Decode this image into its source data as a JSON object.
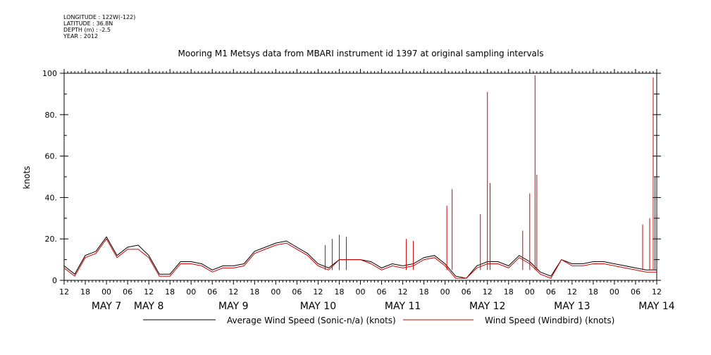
{
  "header": {
    "longitude": "LONGITUDE : 122W(-122)",
    "latitude": "LATITUDE : 36.8N",
    "depth": "DEPTH (m) : -2.5",
    "year": "YEAR : 2012"
  },
  "colors": {
    "average": "#000000",
    "windbird": "#d40000"
  },
  "chart_data": {
    "type": "line",
    "title": "Mooring M1 Metsys data from MBARI instrument id 1397 at original sampling intervals",
    "ylabel": "knots",
    "xlabel": "",
    "ylim": [
      0,
      100
    ],
    "xlim": [
      "2012-05-07 12:00",
      "2012-05-14 12:00"
    ],
    "y_ticks": [
      "0",
      "20.",
      "40.",
      "60.",
      "80.",
      "100"
    ],
    "x_hour_ticks": [
      "12",
      "18",
      "00",
      "06",
      "12",
      "18",
      "00",
      "06",
      "12",
      "18",
      "00",
      "06",
      "12",
      "18",
      "00",
      "06",
      "12",
      "18",
      "00",
      "06",
      "12",
      "18",
      "00",
      "06",
      "12",
      "18",
      "00",
      "06",
      "12"
    ],
    "date_labels": [
      {
        "label": "MAY  7",
        "at": "2012-05-08 00:00"
      },
      {
        "label": "MAY  8",
        "at": "2012-05-08 12:00"
      },
      {
        "label": "MAY  9",
        "at": "2012-05-09 12:00"
      },
      {
        "label": "MAY 10",
        "at": "2012-05-10 12:00"
      },
      {
        "label": "MAY 11",
        "at": "2012-05-11 12:00"
      },
      {
        "label": "MAY 12",
        "at": "2012-05-12 12:00"
      },
      {
        "label": "MAY 13",
        "at": "2012-05-13 12:00"
      },
      {
        "label": "MAY 14",
        "at": "2012-05-14 12:00"
      }
    ],
    "legend_position": "bottom",
    "series": [
      {
        "name": "Average Wind Speed (Sonic-n/a) (knots)",
        "x": [
          "2012-05-07 12:00",
          "2012-05-07 15:00",
          "2012-05-07 18:00",
          "2012-05-07 21:00",
          "2012-05-08 00:00",
          "2012-05-08 03:00",
          "2012-05-08 06:00",
          "2012-05-08 09:00",
          "2012-05-08 12:00",
          "2012-05-08 15:00",
          "2012-05-08 18:00",
          "2012-05-08 21:00",
          "2012-05-09 00:00",
          "2012-05-09 03:00",
          "2012-05-09 06:00",
          "2012-05-09 09:00",
          "2012-05-09 12:00",
          "2012-05-09 15:00",
          "2012-05-09 18:00",
          "2012-05-09 21:00",
          "2012-05-10 00:00",
          "2012-05-10 03:00",
          "2012-05-10 06:00",
          "2012-05-10 09:00",
          "2012-05-10 12:00",
          "2012-05-10 15:00",
          "2012-05-10 18:00",
          "2012-05-10 21:00",
          "2012-05-11 00:00",
          "2012-05-11 03:00",
          "2012-05-11 06:00",
          "2012-05-11 09:00",
          "2012-05-11 12:00",
          "2012-05-11 15:00",
          "2012-05-11 18:00",
          "2012-05-11 21:00",
          "2012-05-12 00:00",
          "2012-05-12 03:00",
          "2012-05-12 06:00",
          "2012-05-12 09:00",
          "2012-05-12 12:00",
          "2012-05-12 15:00",
          "2012-05-12 18:00",
          "2012-05-12 21:00",
          "2012-05-13 00:00",
          "2012-05-13 03:00",
          "2012-05-13 06:00",
          "2012-05-13 09:00",
          "2012-05-13 12:00",
          "2012-05-13 15:00",
          "2012-05-13 18:00",
          "2012-05-13 21:00",
          "2012-05-14 00:00",
          "2012-05-14 03:00",
          "2012-05-14 06:00",
          "2012-05-14 09:00",
          "2012-05-14 12:00"
        ],
        "y": [
          7,
          3,
          12,
          14,
          21,
          12,
          16,
          17,
          12,
          3,
          3,
          9,
          9,
          8,
          5,
          7,
          7,
          8,
          14,
          16,
          18,
          19,
          16,
          13,
          8,
          6,
          10,
          10,
          10,
          9,
          6,
          8,
          7,
          8,
          11,
          12,
          8,
          2,
          1,
          7,
          9,
          9,
          7,
          12,
          9,
          4,
          2,
          10,
          8,
          8,
          9,
          9,
          8,
          7,
          6,
          5,
          5
        ]
      },
      {
        "name": "Wind Speed (Windbird) (knots)",
        "x": [
          "2012-05-07 12:00",
          "2012-05-07 15:00",
          "2012-05-07 18:00",
          "2012-05-07 21:00",
          "2012-05-08 00:00",
          "2012-05-08 03:00",
          "2012-05-08 06:00",
          "2012-05-08 09:00",
          "2012-05-08 12:00",
          "2012-05-08 15:00",
          "2012-05-08 18:00",
          "2012-05-08 21:00",
          "2012-05-09 00:00",
          "2012-05-09 03:00",
          "2012-05-09 06:00",
          "2012-05-09 09:00",
          "2012-05-09 12:00",
          "2012-05-09 15:00",
          "2012-05-09 18:00",
          "2012-05-09 21:00",
          "2012-05-10 00:00",
          "2012-05-10 03:00",
          "2012-05-10 06:00",
          "2012-05-10 09:00",
          "2012-05-10 12:00",
          "2012-05-10 15:00",
          "2012-05-10 18:00",
          "2012-05-10 21:00",
          "2012-05-11 00:00",
          "2012-05-11 03:00",
          "2012-05-11 06:00",
          "2012-05-11 09:00",
          "2012-05-11 12:00",
          "2012-05-11 15:00",
          "2012-05-11 18:00",
          "2012-05-11 21:00",
          "2012-05-12 00:00",
          "2012-05-12 03:00",
          "2012-05-12 06:00",
          "2012-05-12 09:00",
          "2012-05-12 12:00",
          "2012-05-12 15:00",
          "2012-05-12 18:00",
          "2012-05-12 21:00",
          "2012-05-13 00:00",
          "2012-05-13 03:00",
          "2012-05-13 06:00",
          "2012-05-13 09:00",
          "2012-05-13 12:00",
          "2012-05-13 15:00",
          "2012-05-13 18:00",
          "2012-05-13 21:00",
          "2012-05-14 00:00",
          "2012-05-14 03:00",
          "2012-05-14 06:00",
          "2012-05-14 09:00",
          "2012-05-14 12:00"
        ],
        "y": [
          6,
          2,
          11,
          13,
          20,
          11,
          15,
          15,
          11,
          2,
          2,
          8,
          8,
          7,
          4,
          6,
          6,
          7,
          13,
          15,
          17,
          18,
          15,
          12,
          7,
          5,
          10,
          10,
          10,
          8,
          5,
          7,
          6,
          7,
          10,
          11,
          7,
          1,
          1,
          6,
          8,
          8,
          6,
          11,
          8,
          3,
          1,
          10,
          7,
          7,
          8,
          8,
          7,
          6,
          5,
          4,
          4
        ]
      }
    ],
    "windbird_spikes": [
      {
        "x": "2012-05-10 14:00",
        "y": 17
      },
      {
        "x": "2012-05-10 16:00",
        "y": 20
      },
      {
        "x": "2012-05-10 18:00",
        "y": 22
      },
      {
        "x": "2012-05-10 20:00",
        "y": 21
      },
      {
        "x": "2012-05-11 15:00",
        "y": 19
      },
      {
        "x": "2012-05-11 13:00",
        "y": 20
      },
      {
        "x": "2012-05-12 00:30",
        "y": 36
      },
      {
        "x": "2012-05-12 02:00",
        "y": 44
      },
      {
        "x": "2012-05-12 10:00",
        "y": 32
      },
      {
        "x": "2012-05-12 12:00",
        "y": 91
      },
      {
        "x": "2012-05-12 12:45",
        "y": 47
      },
      {
        "x": "2012-05-12 22:00",
        "y": 24
      },
      {
        "x": "2012-05-13 00:00",
        "y": 42
      },
      {
        "x": "2012-05-13 01:30",
        "y": 99
      },
      {
        "x": "2012-05-13 02:00",
        "y": 51
      },
      {
        "x": "2012-05-14 08:00",
        "y": 27
      },
      {
        "x": "2012-05-14 10:00",
        "y": 30
      },
      {
        "x": "2012-05-14 11:00",
        "y": 98
      },
      {
        "x": "2012-05-14 11:30",
        "y": 50
      }
    ]
  }
}
